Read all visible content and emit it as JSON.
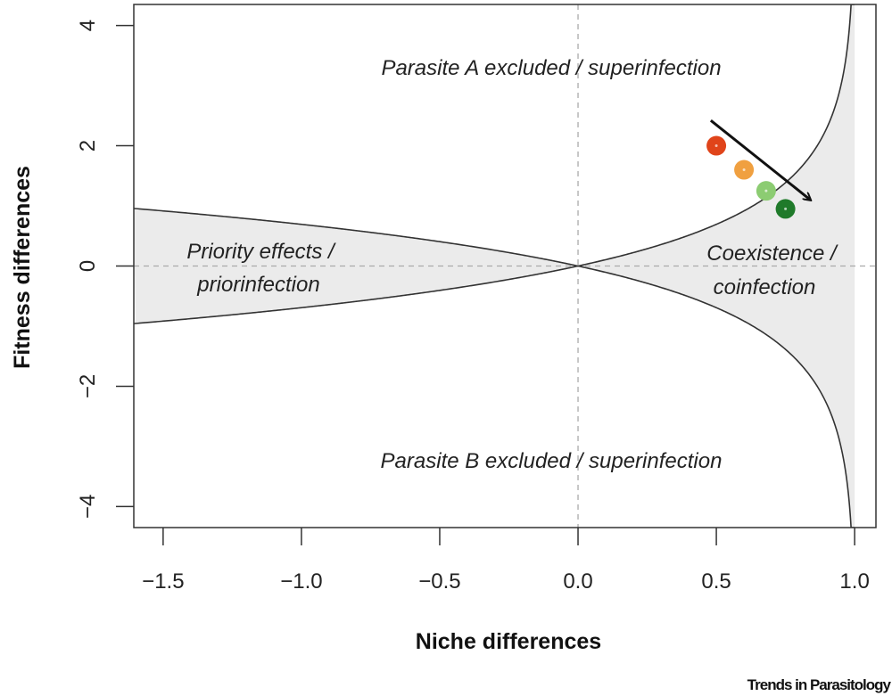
{
  "chart_data": {
    "type": "scatter",
    "title": "",
    "xlabel": "Niche differences",
    "ylabel": "Fitness differences",
    "xlim": [
      -1.606,
      1.077
    ],
    "ylim": [
      -4.35,
      4.35
    ],
    "xticks": [
      -1.5,
      -1.0,
      -0.5,
      0.0,
      0.5,
      1.0
    ],
    "xtick_labels": [
      "−1.5",
      "−1.0",
      "−0.5",
      "0.0",
      "0.5",
      "1.0"
    ],
    "yticks": [
      -4,
      -2,
      0,
      2,
      4
    ],
    "ytick_labels": [
      "−4",
      "−2",
      "0",
      "2",
      "4"
    ],
    "boundary_curves": "y = ±ln(1 − x)",
    "reference_lines": {
      "x": 0,
      "y": 0
    },
    "regions": [
      {
        "label": "Parasite A excluded / superinfection",
        "lines": [
          "Parasite A excluded / superinfection"
        ]
      },
      {
        "label": "Parasite B excluded / superinfection",
        "lines": [
          "Parasite B excluded / superinfection"
        ]
      },
      {
        "label": "Priority effects / priorinfection",
        "lines": [
          "Priority effects /",
          "priorinfection"
        ]
      },
      {
        "label": "Coexistence / coinfection",
        "lines": [
          "Coexistence /",
          "coinfection"
        ]
      }
    ],
    "points": [
      {
        "x": 0.5,
        "y": 2.0,
        "color": "#e0441a"
      },
      {
        "x": 0.6,
        "y": 1.6,
        "color": "#f0a040"
      },
      {
        "x": 0.68,
        "y": 1.25,
        "color": "#8ccc72"
      },
      {
        "x": 0.75,
        "y": 0.95,
        "color": "#1f7a2a"
      }
    ],
    "arrow": {
      "from": [
        0.48,
        2.42
      ],
      "to": [
        0.84,
        1.1
      ]
    },
    "colors": {
      "shade": "#ebebeb",
      "curve": "#333333",
      "dashed": "#aaaaaa"
    }
  },
  "credit": "Trends in Parasitology"
}
